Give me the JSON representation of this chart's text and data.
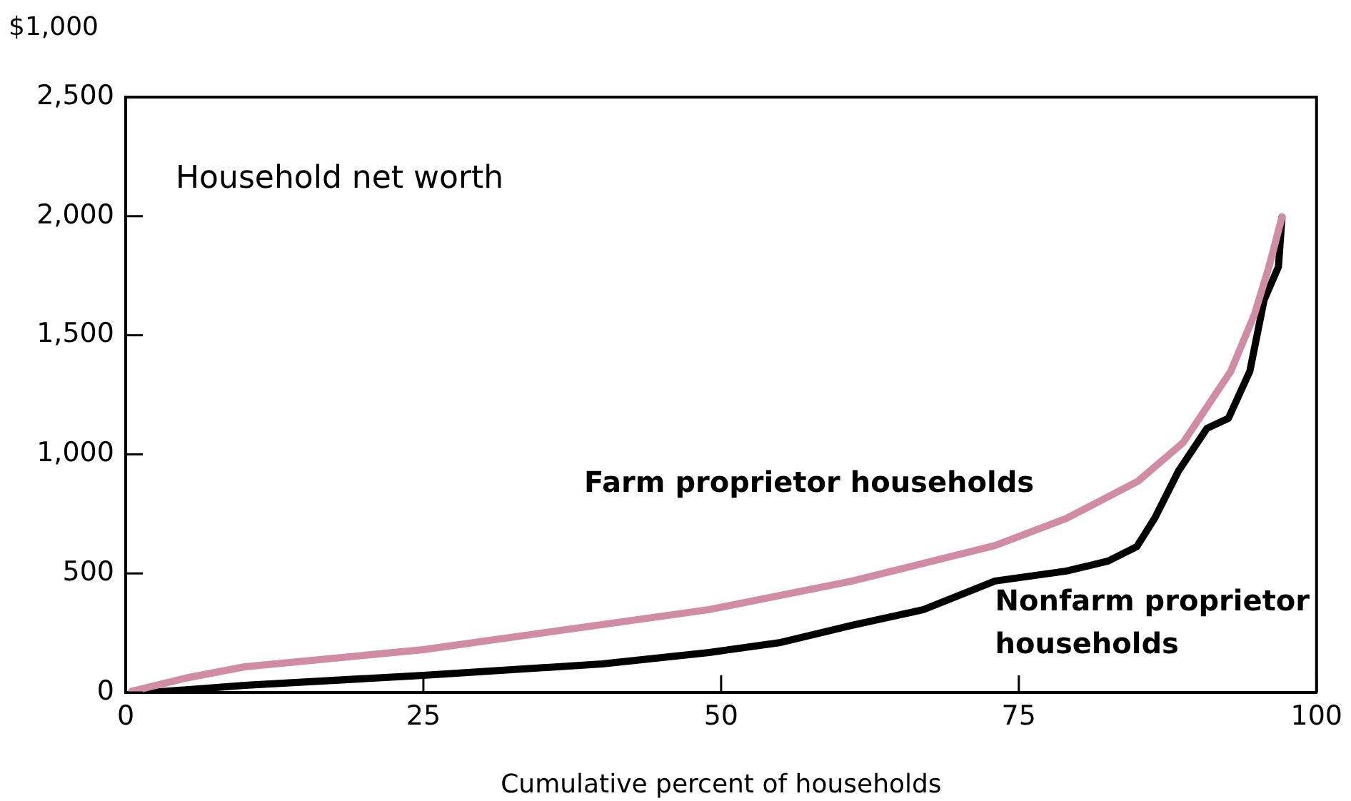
{
  "chart_data": {
    "type": "line",
    "ylabel": "$1,000",
    "xlabel": "Cumulative percent of households",
    "annotations": [
      "Household net worth"
    ],
    "xlim": [
      0,
      100
    ],
    "xticks": [
      0,
      25,
      50,
      75,
      100
    ],
    "ylim": [
      0,
      2500
    ],
    "yticks": [
      0,
      {
        "value": 500,
        "label": "500"
      },
      {
        "value": 1000,
        "label": "1,000"
      },
      {
        "value": 1500,
        "label": "1,500"
      },
      {
        "value": 2000,
        "label": "2,000"
      },
      {
        "value": 2500,
        "label": "2,500"
      }
    ],
    "grid": false,
    "legend": false,
    "marker": "none",
    "line_style": "solid",
    "series": [
      {
        "name": "Farm proprietor households",
        "color": "#d08ca4",
        "x": [
          0.5,
          5,
          10,
          25,
          49,
          61,
          73,
          79,
          85,
          88.8,
          92.8,
          94.8,
          96,
          97.1
        ],
        "values": [
          5,
          60,
          108,
          180,
          348,
          468,
          617,
          731,
          887,
          1049,
          1349,
          1589,
          1787,
          1996
        ]
      },
      {
        "name": "Nonfarm proprietor households",
        "color": "#000000",
        "x": [
          2,
          10,
          25,
          40,
          49,
          55,
          61,
          67,
          73,
          79,
          82.5,
          84.9,
          86.4,
          88.4,
          90.8,
          92.6,
          94.4,
          95.6,
          96.8,
          97.1
        ],
        "values": [
          0,
          30,
          72,
          120,
          168,
          210,
          282,
          348,
          468,
          510,
          552,
          612,
          731,
          929,
          1109,
          1151,
          1349,
          1649,
          1787,
          1996
        ]
      }
    ]
  }
}
